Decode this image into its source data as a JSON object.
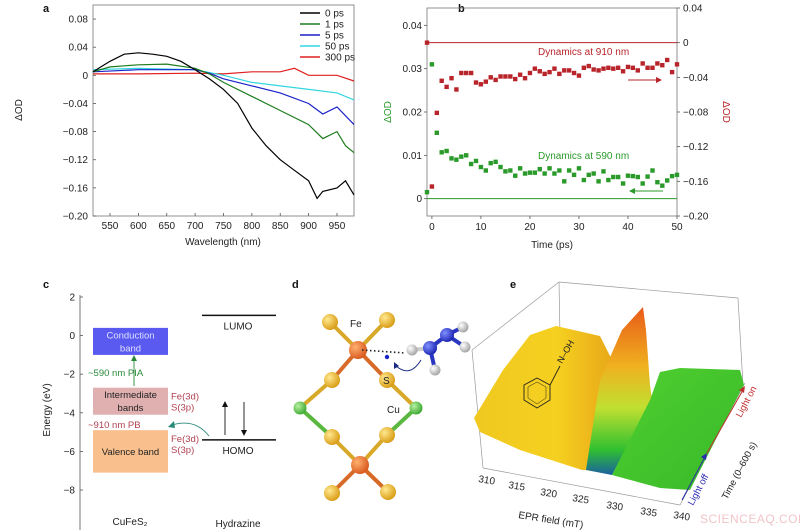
{
  "panel_labels": {
    "a": "a",
    "b": "b",
    "c": "c",
    "d": "d",
    "e": "e"
  },
  "chart_data": [
    {
      "panel": "a",
      "type": "line",
      "xlabel": "Wavelength (nm)",
      "ylabel": "ΔOD",
      "xlim": [
        520,
        980
      ],
      "ylim": [
        -0.2,
        0.1
      ],
      "xticks": [
        550,
        600,
        650,
        700,
        750,
        800,
        850,
        900,
        950
      ],
      "yticks": [
        0.08,
        0.04,
        0,
        -0.04,
        -0.08,
        -0.12,
        -0.16,
        -0.2
      ],
      "ytick_labels": [
        "0.08",
        "0.04",
        "0",
        "−0.04",
        "−0.08",
        "−0.12",
        "−0.16",
        "−0.20"
      ],
      "legend_position": "top-right",
      "series": [
        {
          "name": "0 ps",
          "color": "#000000",
          "x": [
            520,
            550,
            575,
            600,
            625,
            650,
            675,
            700,
            725,
            750,
            775,
            800,
            825,
            850,
            875,
            900,
            915,
            925,
            950,
            965,
            980
          ],
          "y": [
            0.005,
            0.02,
            0.03,
            0.032,
            0.03,
            0.027,
            0.02,
            0.008,
            -0.005,
            -0.02,
            -0.04,
            -0.075,
            -0.1,
            -0.12,
            -0.135,
            -0.15,
            -0.175,
            -0.165,
            -0.16,
            -0.15,
            -0.17
          ]
        },
        {
          "name": "1 ps",
          "color": "#1e7d1e",
          "x": [
            520,
            550,
            600,
            650,
            700,
            725,
            750,
            800,
            850,
            900,
            925,
            950,
            965,
            980
          ],
          "y": [
            0.005,
            0.012,
            0.015,
            0.016,
            0.01,
            0.002,
            -0.01,
            -0.03,
            -0.05,
            -0.07,
            -0.09,
            -0.08,
            -0.1,
            -0.11
          ]
        },
        {
          "name": "5 ps",
          "color": "#1a22c8",
          "x": [
            520,
            600,
            700,
            725,
            750,
            800,
            850,
            900,
            925,
            950,
            980
          ],
          "y": [
            0.005,
            0.008,
            0.008,
            0.003,
            -0.005,
            -0.015,
            -0.025,
            -0.04,
            -0.055,
            -0.045,
            -0.07
          ]
        },
        {
          "name": "50 ps",
          "color": "#33d6e0",
          "x": [
            520,
            600,
            700,
            750,
            800,
            850,
            900,
            950,
            980
          ],
          "y": [
            0.008,
            0.01,
            0.008,
            0,
            -0.01,
            -0.015,
            -0.02,
            -0.025,
            -0.035
          ]
        },
        {
          "name": "300 ps",
          "color": "#e02020",
          "x": [
            520,
            600,
            700,
            750,
            800,
            850,
            875,
            900,
            950,
            980
          ],
          "y": [
            0.002,
            0.002,
            0.003,
            0.002,
            0.005,
            0.005,
            0.01,
            0,
            0,
            -0.008
          ]
        }
      ]
    },
    {
      "panel": "b",
      "type": "scatter",
      "xlabel": "Time (ps)",
      "ylabel_left": "ΔOD",
      "ylabel_right": "ΔOD",
      "xlim": [
        -1,
        50
      ],
      "ylim_left": [
        -0.004,
        0.044
      ],
      "ylim_right": [
        -0.2,
        0.04
      ],
      "xticks": [
        0,
        10,
        20,
        30,
        40,
        50
      ],
      "yticks_left": [
        0,
        0.01,
        0.02,
        0.03,
        0.04
      ],
      "yticks_right": [
        0.04,
        0,
        -0.04,
        -0.08,
        -0.12,
        -0.16,
        -0.2
      ],
      "ytick_labels_right": [
        "0.04",
        "0",
        "−0.04",
        "−0.08",
        "−0.12",
        "−0.16",
        "−0.20"
      ],
      "series": [
        {
          "annotation": "Dynamics at 910 nm",
          "axis": "right",
          "color": "#b8242a",
          "x": [
            -1,
            0,
            1,
            2,
            3,
            4,
            5,
            6,
            7,
            8,
            9,
            10,
            11,
            12,
            13,
            14,
            15,
            16,
            17,
            18,
            19,
            20,
            21,
            22,
            23,
            24,
            25,
            26,
            27,
            28,
            29,
            30,
            31,
            32,
            33,
            34,
            35,
            36,
            37,
            38,
            39,
            40,
            41,
            42,
            43,
            44,
            45,
            46,
            47,
            48,
            49,
            50
          ],
          "y": [
            0,
            -0.166,
            -0.081,
            -0.044,
            -0.051,
            -0.041,
            -0.054,
            -0.035,
            -0.035,
            -0.035,
            -0.046,
            -0.048,
            -0.045,
            -0.04,
            -0.043,
            -0.039,
            -0.039,
            -0.039,
            -0.042,
            -0.037,
            -0.041,
            -0.035,
            -0.03,
            -0.033,
            -0.036,
            -0.034,
            -0.03,
            -0.036,
            -0.032,
            -0.032,
            -0.035,
            -0.038,
            -0.029,
            -0.027,
            -0.031,
            -0.032,
            -0.03,
            -0.029,
            -0.03,
            -0.029,
            -0.033,
            -0.028,
            -0.029,
            -0.032,
            -0.024,
            -0.029,
            -0.029,
            -0.024,
            -0.026,
            -0.02,
            -0.034,
            -0.025
          ]
        },
        {
          "annotation": "Dynamics at 590 nm",
          "axis": "left",
          "color": "#2a9a2a",
          "x": [
            -1,
            0,
            1,
            2,
            3,
            4,
            5,
            6,
            7,
            8,
            9,
            10,
            11,
            12,
            13,
            14,
            15,
            16,
            17,
            18,
            19,
            20,
            21,
            22,
            23,
            24,
            25,
            26,
            27,
            28,
            29,
            30,
            31,
            32,
            33,
            34,
            35,
            36,
            37,
            38,
            39,
            40,
            41,
            42,
            43,
            44,
            45,
            46,
            47,
            48,
            49,
            50
          ],
          "y": [
            0.0015,
            0.031,
            0.0152,
            0.0107,
            0.011,
            0.0093,
            0.009,
            0.0097,
            0.01,
            0.008,
            0.0087,
            0.0073,
            0.0065,
            0.0082,
            0.0085,
            0.0073,
            0.0063,
            0.0065,
            0.0053,
            0.007,
            0.0058,
            0.006,
            0.006,
            0.0068,
            0.0058,
            0.007,
            0.0058,
            0.0065,
            0.004,
            0.0065,
            0.0055,
            0.007,
            0.0043,
            0.0055,
            0.0058,
            0.004,
            0.0063,
            0.0043,
            0.005,
            0.005,
            0.0035,
            0.0053,
            0.0052,
            0.005,
            0.0035,
            0.0051,
            0.0065,
            0.0038,
            0.003,
            0.0042,
            0.0052,
            0.0055
          ]
        }
      ]
    }
  ],
  "panel_c": {
    "ylabel": "Energy (eV)",
    "ylim": [
      -10,
      2
    ],
    "yticks": [
      2,
      0,
      -2,
      -4,
      -6,
      -8
    ],
    "ytick_labels": [
      "2",
      "0",
      "−2",
      "−4",
      "−6",
      "−8"
    ],
    "bands": [
      {
        "label_lines": [
          "Conduction",
          "band"
        ],
        "top": 0.4,
        "bottom": -1.0,
        "color": "#5a5af0",
        "text_color": "#dde0ff"
      },
      {
        "label_lines": [
          "Intermediate",
          "bands"
        ],
        "top": -2.7,
        "bottom": -4.1,
        "color": "#e0b0b0",
        "text_color": "#222222",
        "orbital": [
          "Fe(3d)",
          "S(3p)"
        ]
      },
      {
        "label_lines": [
          "Valence band"
        ],
        "top": -4.9,
        "bottom": -7.1,
        "color": "#f9bf8c",
        "text_color": "#222222",
        "orbital": [
          "Fe(3d)",
          "S(3p)"
        ]
      }
    ],
    "levels": [
      {
        "label": "LUMO",
        "energy": 1.05
      },
      {
        "label": "HOMO",
        "energy": -5.4
      }
    ],
    "transitions": {
      "pia": "~590 nm  PIA",
      "pb": "~910 nm   PB"
    },
    "xlabels": {
      "left": "CuFeS₂",
      "right": "Hydrazine"
    },
    "colors": {
      "green": "#2a8a3a",
      "red": "#b04050"
    }
  },
  "panel_d": {
    "atom_labels": {
      "fe": "Fe",
      "s": "S",
      "cu": "Cu"
    }
  },
  "panel_e": {
    "xlabel": "EPR field (mT)",
    "xticks": [
      "310",
      "315",
      "320",
      "325",
      "330",
      "335",
      "340"
    ],
    "time_label": "Time (0–600 s)",
    "light_off": "Light off",
    "light_on": "Light on",
    "molecule_label": "N–OH"
  },
  "watermark": "SCIENCEAQ.COM"
}
